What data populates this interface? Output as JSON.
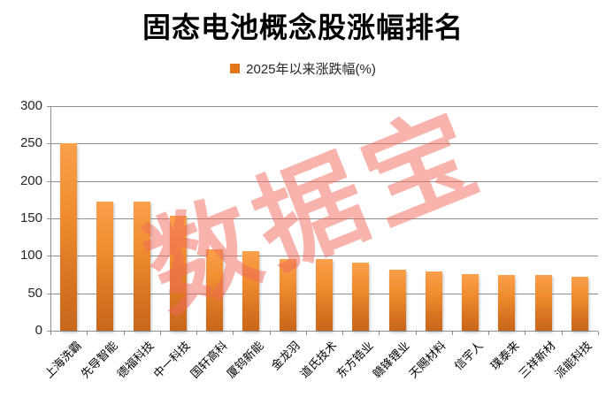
{
  "title": "固态电池概念股涨幅排名",
  "legend": {
    "label": "2025年以来涨跌幅(%)",
    "swatch_color": "#e2761b"
  },
  "watermark": "数据宝",
  "colors": {
    "bar_top": "#faa04b",
    "bar_bottom": "#c8671c",
    "legend_swatch": "#e2761b",
    "watermark": "#f0695c",
    "gridline": "#8e8e8e",
    "title_text": "#000000",
    "axis_text": "#262626"
  },
  "chart_data": {
    "type": "bar",
    "title": "固态电池概念股涨幅排名",
    "series_name": "2025年以来涨跌幅(%)",
    "categories": [
      "上海洗霸",
      "先导智能",
      "德福科技",
      "中一科技",
      "国轩高科",
      "厦钨新能",
      "金龙羽",
      "道氏技术",
      "东方锆业",
      "赣锋锂业",
      "天赐材料",
      "信宇人",
      "璞泰来",
      "三祥新材",
      "派能科技"
    ],
    "values": [
      250,
      173,
      172,
      153,
      109,
      106,
      96,
      96,
      91,
      82,
      79,
      76,
      75,
      74,
      72
    ],
    "xlabel": "",
    "ylabel": "",
    "ylim": [
      0,
      300
    ],
    "yticks": [
      0,
      50,
      100,
      150,
      200,
      250,
      300
    ],
    "grid": true,
    "legend_position": "top"
  }
}
